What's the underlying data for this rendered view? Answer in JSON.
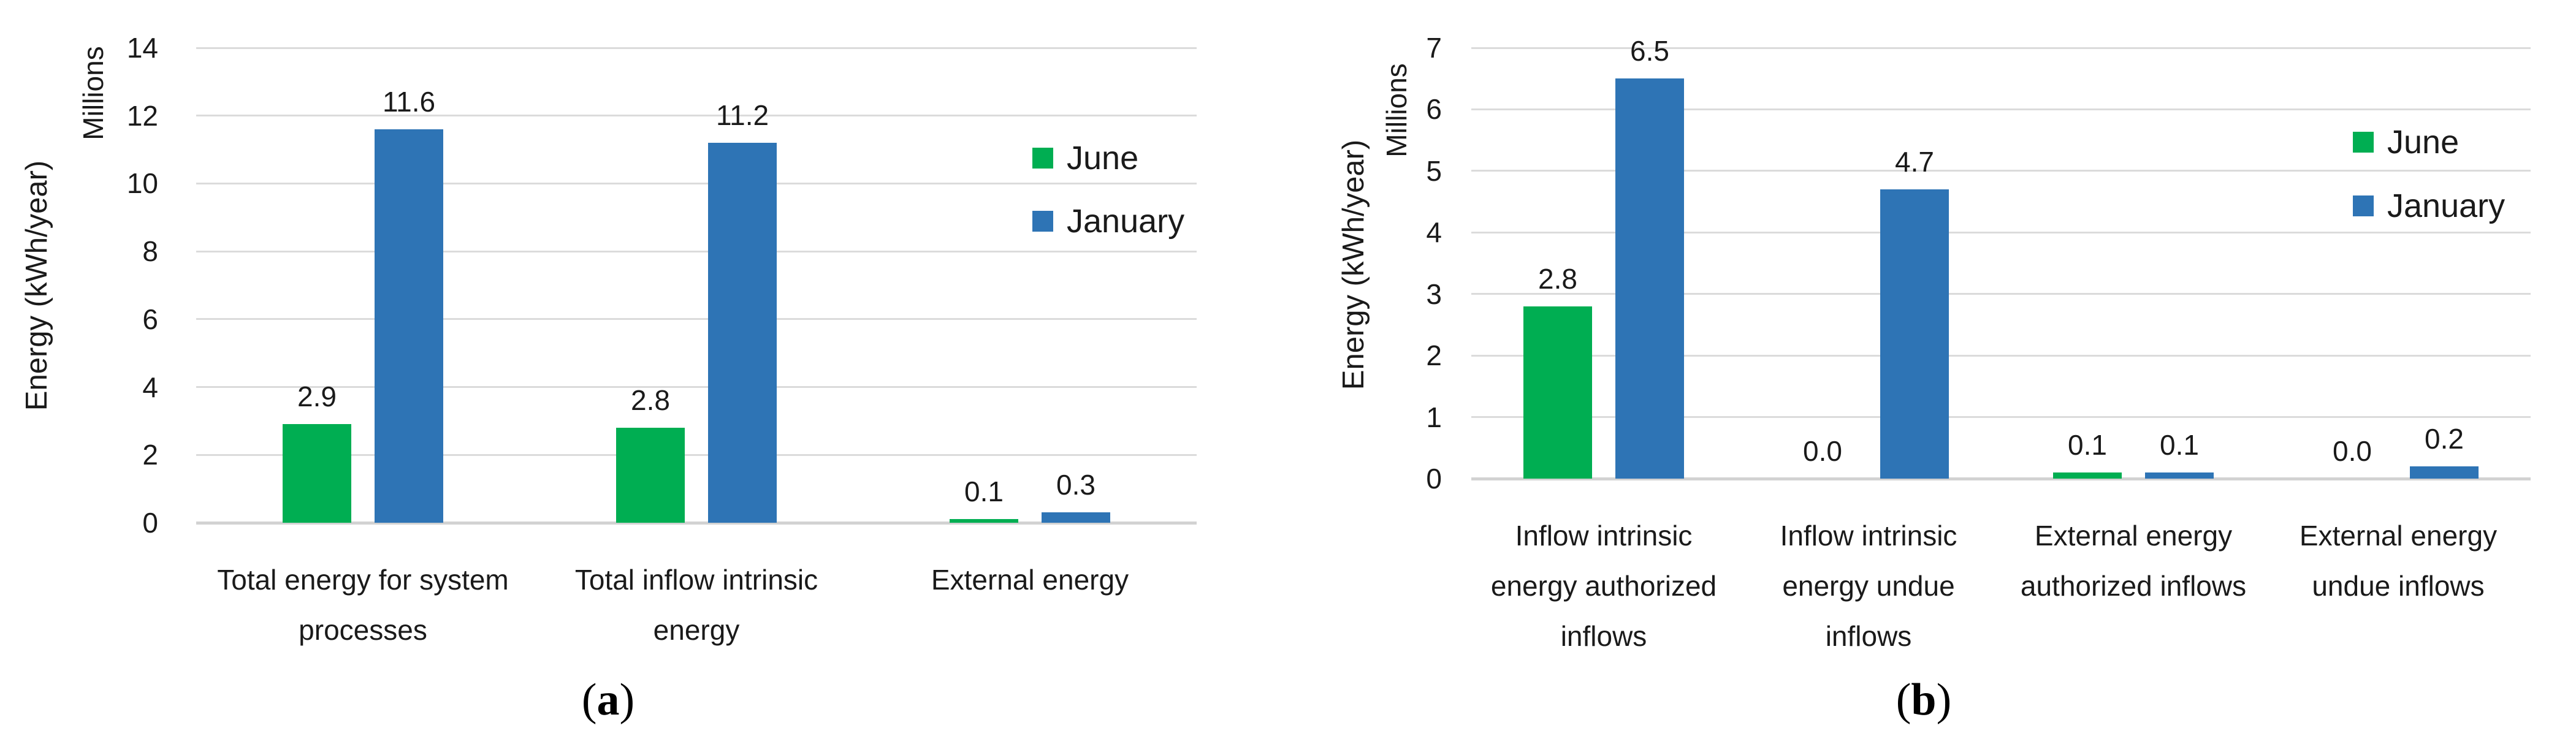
{
  "figure": {
    "captions": {
      "a": {
        "pre": "(",
        "label": "a",
        "post": ")"
      },
      "b": {
        "pre": "(",
        "label": "b",
        "post": ")"
      }
    }
  },
  "colors": {
    "june": "#00AE52",
    "january": "#2E74B5",
    "gridline": "#DBDBDB",
    "baseline": "#D2D2D2",
    "text": "#1A1A1A"
  },
  "chart_data": [
    {
      "id": "a",
      "type": "bar",
      "ylabel": "Energy (kWh/year)",
      "units_label": "Millions",
      "ylim": [
        0,
        14
      ],
      "ytick_step": 2,
      "ytick_labels": [
        "0",
        "2",
        "4",
        "6",
        "8",
        "10",
        "12",
        "14"
      ],
      "grid": true,
      "legend_position": "inside-right",
      "categories": [
        "Total energy for system processes",
        "Total inflow intrinsic energy",
        "External energy"
      ],
      "category_label_lines": [
        [
          "Total energy for system",
          "processes"
        ],
        [
          "Total inflow intrinsic",
          "energy"
        ],
        [
          "External energy"
        ]
      ],
      "series": [
        {
          "name": "June",
          "color_key": "june",
          "values": [
            2.9,
            2.8,
            0.1
          ],
          "value_labels": [
            "2.9",
            "2.8",
            "0.1"
          ]
        },
        {
          "name": "January",
          "color_key": "january",
          "values": [
            11.6,
            11.2,
            0.3
          ],
          "value_labels": [
            "11.6",
            "11.2",
            "0.3"
          ]
        }
      ]
    },
    {
      "id": "b",
      "type": "bar",
      "ylabel": "Energy (kWh/year)",
      "units_label": "Millions",
      "ylim": [
        0,
        7
      ],
      "ytick_step": 1,
      "ytick_labels": [
        "0",
        "1",
        "2",
        "3",
        "4",
        "5",
        "6",
        "7"
      ],
      "grid": true,
      "legend_position": "inside-right",
      "categories": [
        "Inflow intrinsic energy authorized inflows",
        "Inflow intrinsic energy undue inflows",
        "External energy authorized inflows",
        "External energy undue inflows"
      ],
      "category_label_lines": [
        [
          "Inflow intrinsic",
          "energy authorized",
          "inflows"
        ],
        [
          "Inflow intrinsic",
          "energy undue",
          "inflows"
        ],
        [
          "External energy",
          "authorized inflows"
        ],
        [
          "External energy",
          "undue inflows"
        ]
      ],
      "series": [
        {
          "name": "June",
          "color_key": "june",
          "values": [
            2.8,
            0.0,
            0.1,
            0.0
          ],
          "value_labels": [
            "2.8",
            "0.0",
            "0.1",
            "0.0"
          ]
        },
        {
          "name": "January",
          "color_key": "january",
          "values": [
            6.5,
            4.7,
            0.1,
            0.2
          ],
          "value_labels": [
            "6.5",
            "4.7",
            "0.1",
            "0.2"
          ]
        }
      ]
    }
  ]
}
